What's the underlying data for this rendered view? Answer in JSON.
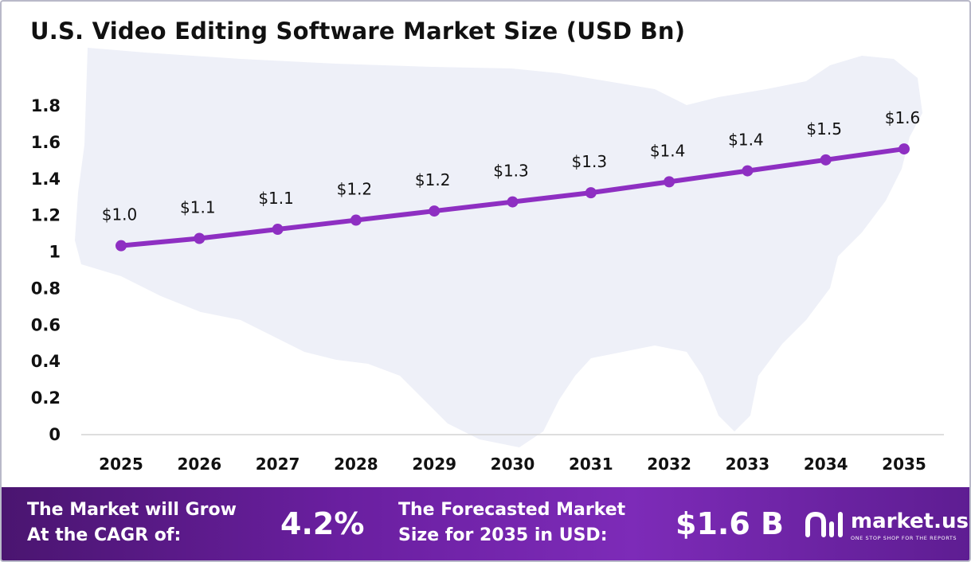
{
  "chart_data": {
    "type": "line",
    "title": "U.S. Video Editing Software Market Size (USD Bn)",
    "categories": [
      "2025",
      "2026",
      "2027",
      "2028",
      "2029",
      "2030",
      "2031",
      "2032",
      "2033",
      "2034",
      "2035"
    ],
    "series": [
      {
        "values": [
          1.03,
          1.07,
          1.12,
          1.17,
          1.22,
          1.27,
          1.32,
          1.38,
          1.44,
          1.5,
          1.56
        ],
        "labels": [
          "$1.0",
          "$1.1",
          "$1.1",
          "$1.2",
          "$1.2",
          "$1.3",
          "$1.3",
          "$1.4",
          "$1.4",
          "$1.5",
          "$1.6"
        ],
        "color": "#8e2fc2"
      }
    ],
    "y_ticks": [
      "0",
      "0.2",
      "0.4",
      "0.6",
      "0.8",
      "1",
      "1.2",
      "1.4",
      "1.6",
      "1.8"
    ],
    "ylim": [
      0,
      1.8
    ],
    "grid": false,
    "legend": "none",
    "colors": {
      "line": "#8e2fc2",
      "background_map": "#eef0f8"
    }
  },
  "footer": {
    "cagr_label_line1": "The Market will Grow",
    "cagr_label_line2": "At the CAGR of:",
    "cagr_value": "4.2%",
    "forecast_label_line1": "The Forecasted Market",
    "forecast_label_line2": "Size for 2035 in USD:",
    "forecast_value": "$1.6 B",
    "colors": {
      "start": "#4a1570",
      "end": "#7d2bb8"
    }
  },
  "logo": {
    "name": "market.us",
    "tagline": "ONE STOP SHOP FOR THE REPORTS",
    "icon": "market-us-logo-icon"
  }
}
